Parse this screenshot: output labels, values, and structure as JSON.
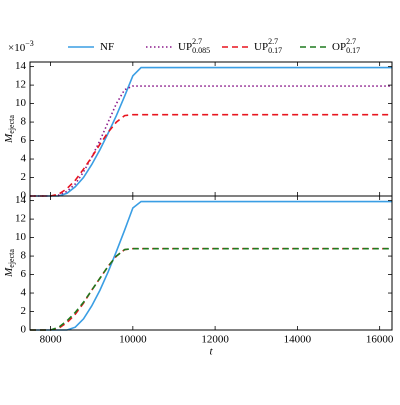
{
  "chart_data": {
    "type": "line",
    "x": [
      7500,
      8000,
      8200,
      8400,
      8600,
      8800,
      9000,
      9200,
      9400,
      9600,
      9800,
      10000,
      10200,
      11000,
      12000,
      14000,
      16300
    ],
    "xlim": [
      7500,
      16300
    ],
    "xticks": [
      8000,
      10000,
      12000,
      14000,
      16000
    ],
    "xlabel": "t",
    "offset_label": "×10",
    "offset_sup": "−3",
    "panels": [
      {
        "ylim": [
          0,
          14.5
        ],
        "yticks": [
          0,
          2,
          4,
          6,
          8,
          10,
          12,
          14
        ],
        "ylabel": "M",
        "ylabel_sub": "ejecta"
      },
      {
        "ylim": [
          0,
          14.5
        ],
        "yticks": [
          0,
          2,
          4,
          6,
          8,
          10,
          12,
          14
        ],
        "ylabel": "M",
        "ylabel_sub": "ejecta"
      }
    ],
    "series": [
      {
        "name": "NF",
        "color": "#3a9ee4",
        "style": "solid",
        "values_top": [
          0,
          0,
          0,
          0.3,
          1.0,
          2.0,
          3.4,
          5.0,
          6.8,
          8.7,
          10.8,
          13.0,
          13.9,
          13.9,
          13.9,
          13.9,
          13.9
        ],
        "values_bottom": [
          0,
          0,
          0,
          0,
          0.3,
          1.2,
          2.6,
          4.3,
          6.3,
          8.5,
          10.8,
          13.2,
          13.9,
          13.9,
          13.9,
          13.9,
          13.9
        ]
      },
      {
        "name": "UP",
        "sup": "2.7",
        "sub": "0.085",
        "color": "#8b1a8b",
        "style": "dotted",
        "values_top": [
          0,
          0,
          0.1,
          0.5,
          1.3,
          2.6,
          4.2,
          6.0,
          8.0,
          10.0,
          11.5,
          11.9,
          11.9,
          11.9,
          11.9,
          11.9,
          11.9
        ]
      },
      {
        "name": "UP",
        "sup": "2.7",
        "sub": "0.17",
        "color": "#e8141e",
        "style": "dashed",
        "values_top": [
          0,
          0,
          0.2,
          0.8,
          1.7,
          2.9,
          4.2,
          5.6,
          6.9,
          8.0,
          8.7,
          8.8,
          8.8,
          8.8,
          8.8,
          8.8,
          8.8
        ],
        "values_bottom": [
          0,
          0,
          0.2,
          0.8,
          1.7,
          2.9,
          4.3,
          5.6,
          6.9,
          8.0,
          8.7,
          8.8,
          8.8,
          8.8,
          8.8,
          8.8,
          8.8
        ]
      },
      {
        "name": "OP",
        "sup": "2.7",
        "sub": "0.17",
        "color": "#1f7a1f",
        "style": "dashed",
        "values_bottom": [
          0,
          0,
          0.3,
          1.0,
          1.9,
          3.0,
          4.3,
          5.6,
          6.9,
          8.0,
          8.7,
          8.8,
          8.8,
          8.8,
          8.8,
          8.8,
          8.8
        ]
      }
    ]
  }
}
